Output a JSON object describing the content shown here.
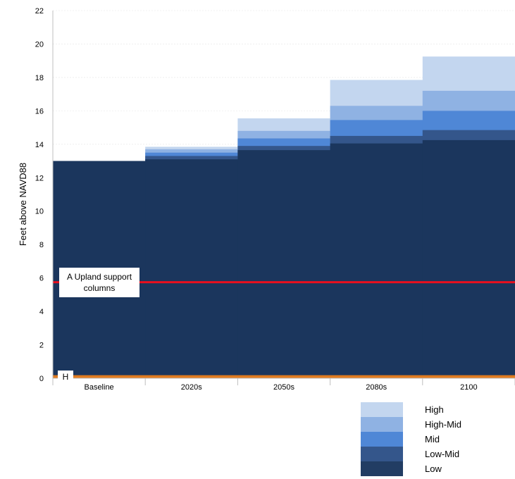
{
  "chart_data": {
    "type": "area",
    "ylabel": "Feet above NAVD88",
    "xlabel": "",
    "ylim": [
      0,
      22
    ],
    "yticks": [
      0,
      2,
      4,
      6,
      8,
      10,
      12,
      14,
      16,
      18,
      20,
      22
    ],
    "categories": [
      "Baseline",
      "2020s",
      "2050s",
      "2080s",
      "2100"
    ],
    "series": [
      {
        "name": "Low",
        "color": "#1b365d",
        "values": [
          13.0,
          13.1,
          13.65,
          14.05,
          14.25
        ]
      },
      {
        "name": "Low-Mid",
        "color": "#34568b",
        "values": [
          13.0,
          13.3,
          13.9,
          14.5,
          14.85
        ]
      },
      {
        "name": "Mid",
        "color": "#4f87d6",
        "values": [
          13.0,
          13.5,
          14.35,
          15.45,
          16.0
        ]
      },
      {
        "name": "High-Mid",
        "color": "#8fb2e3",
        "values": [
          13.0,
          13.7,
          14.8,
          16.3,
          17.2
        ]
      },
      {
        "name": "High",
        "color": "#c3d6ef",
        "values": [
          13.0,
          13.85,
          15.55,
          17.85,
          19.25
        ]
      }
    ],
    "reference_lines": [
      {
        "label": "A Upland support columns",
        "value": 5.75,
        "color": "#e8101e"
      },
      {
        "label": "H",
        "value": 0.1,
        "color": "#e07b1f"
      }
    ],
    "legend": {
      "placement": "bottom-right",
      "order": [
        "High",
        "High-Mid",
        "Mid",
        "Low-Mid",
        "Low"
      ]
    },
    "grid": true
  }
}
